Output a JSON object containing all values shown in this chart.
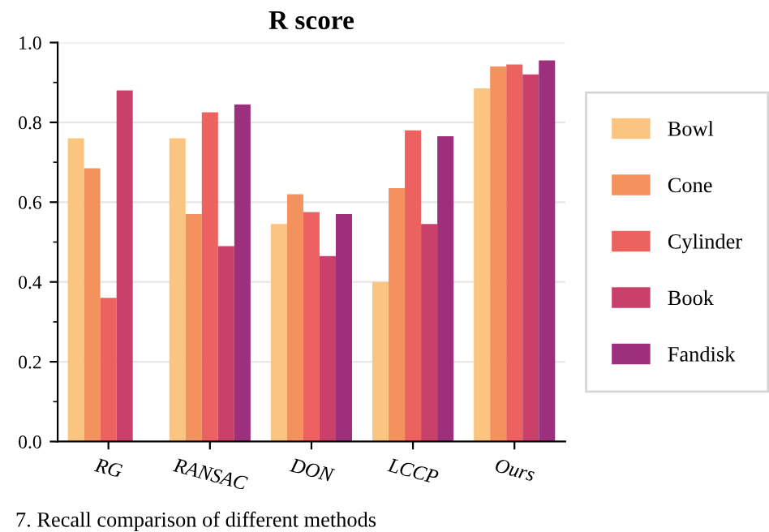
{
  "chart_data": {
    "type": "bar",
    "title": "R score",
    "categories": [
      "RG",
      "RANSAC",
      "DON",
      "LCCP",
      "Ours"
    ],
    "series": [
      {
        "name": "Bowl",
        "color": "#fbc581",
        "values": [
          0.76,
          0.76,
          0.545,
          0.4,
          0.885
        ]
      },
      {
        "name": "Cone",
        "color": "#f4925e",
        "values": [
          0.685,
          0.57,
          0.62,
          0.635,
          0.94
        ]
      },
      {
        "name": "Cylinder",
        "color": "#ec6260",
        "values": [
          0.36,
          0.825,
          0.575,
          0.78,
          0.945
        ]
      },
      {
        "name": "Book",
        "color": "#c9406b",
        "values": [
          0.88,
          0.49,
          0.465,
          0.545,
          0.92
        ]
      },
      {
        "name": "Fandisk",
        "color": "#9d307d",
        "values": [
          null,
          0.845,
          0.57,
          0.765,
          0.955
        ]
      }
    ],
    "ylim": [
      0,
      1.0
    ],
    "yticks": [
      {
        "value": 0,
        "label": "0.0"
      },
      0.2,
      0.4,
      0.6,
      0.8,
      {
        "value": 1,
        "label": "1.0"
      }
    ],
    "grid": "y",
    "legend": "right",
    "annotations": [
      "7. Recall comparison of different methods"
    ]
  }
}
